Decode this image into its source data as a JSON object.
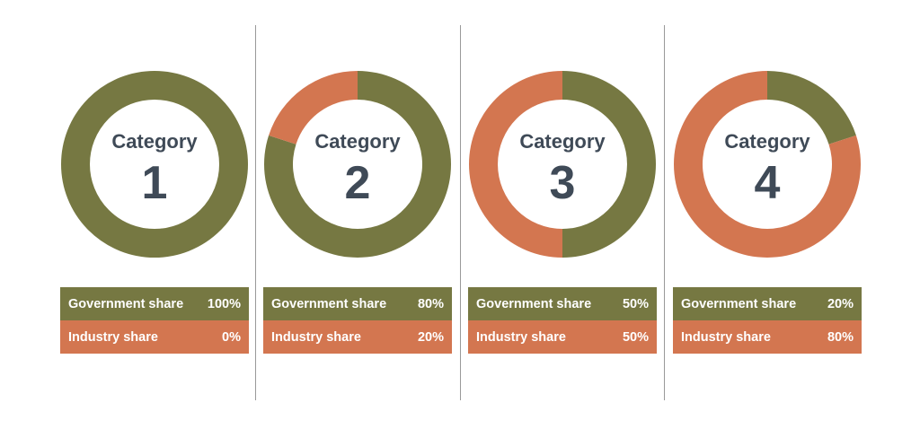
{
  "colors": {
    "government": "#767842",
    "industry": "#d37650",
    "text": "#3f4a57",
    "divider": "#9a9a9a"
  },
  "chart_data": [
    {
      "type": "pie",
      "title": "Category",
      "number": "1",
      "labels": [
        "Government share",
        "Industry share"
      ],
      "values": [
        100,
        0
      ],
      "value_labels": [
        "100%",
        "0%"
      ],
      "donut": true
    },
    {
      "type": "pie",
      "title": "Category",
      "number": "2",
      "labels": [
        "Government share",
        "Industry share"
      ],
      "values": [
        80,
        20
      ],
      "value_labels": [
        "80%",
        "20%"
      ],
      "donut": true
    },
    {
      "type": "pie",
      "title": "Category",
      "number": "3",
      "labels": [
        "Government share",
        "Industry share"
      ],
      "values": [
        50,
        50
      ],
      "value_labels": [
        "50%",
        "50%"
      ],
      "donut": true
    },
    {
      "type": "pie",
      "title": "Category",
      "number": "4",
      "labels": [
        "Government share",
        "Industry share"
      ],
      "values": [
        20,
        80
      ],
      "value_labels": [
        "20%",
        "80%"
      ],
      "donut": true
    }
  ]
}
